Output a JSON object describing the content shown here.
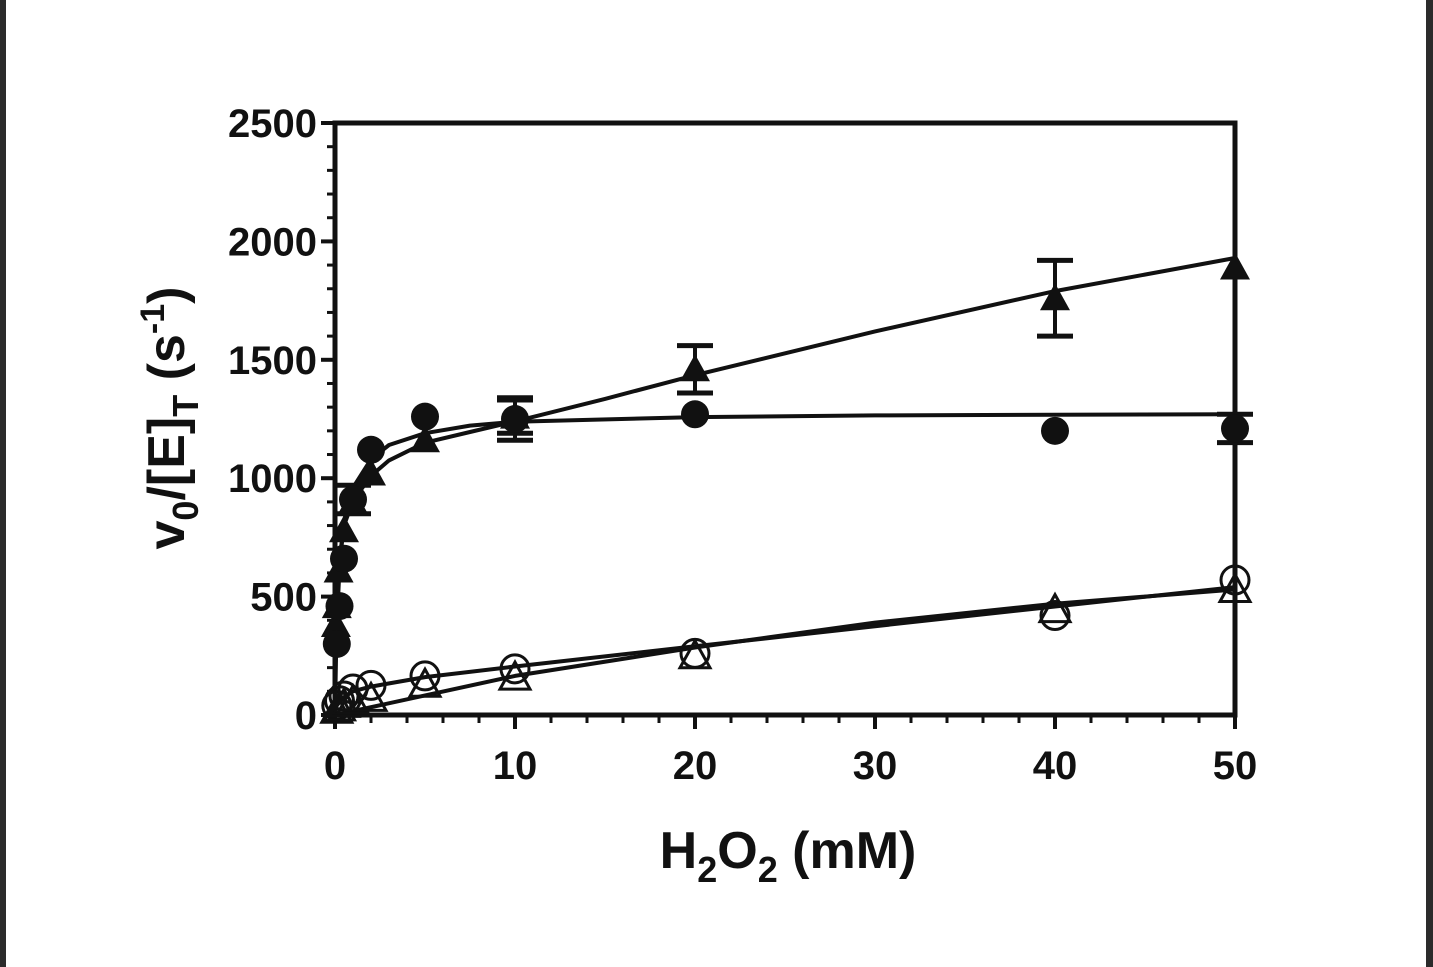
{
  "chart_data": {
    "type": "scatter",
    "title": "",
    "xlabel": {
      "main": "H",
      "sub1": "2",
      "mid": "O",
      "sub2": "2",
      "tail": " (mM)"
    },
    "ylabel": {
      "v": "v",
      "sub0": "0",
      "mid": "/[E]",
      "subT": "T",
      "tail": " (s",
      "sup": "-1",
      "close": ")"
    },
    "xlim": [
      0,
      50
    ],
    "ylim": [
      0,
      2500
    ],
    "x_ticks": [
      0,
      10,
      20,
      30,
      40,
      50
    ],
    "y_ticks": [
      0,
      500,
      1000,
      1500,
      2000,
      2500
    ],
    "grid": false,
    "legend": "none",
    "series": [
      {
        "marker": "filled-triangle",
        "points": [
          {
            "x": 0.05,
            "y": 380
          },
          {
            "x": 0.1,
            "y": 460
          },
          {
            "x": 0.2,
            "y": 610
          },
          {
            "x": 0.5,
            "y": 780
          },
          {
            "x": 1,
            "y": 900
          },
          {
            "x": 2,
            "y": 1020
          },
          {
            "x": 5,
            "y": 1160
          },
          {
            "x": 10,
            "y": 1260
          },
          {
            "x": 20,
            "y": 1460
          },
          {
            "x": 40,
            "y": 1760
          },
          {
            "x": 50,
            "y": 1890
          }
        ],
        "error": [
          null,
          null,
          null,
          null,
          null,
          null,
          null,
          70,
          100,
          160,
          null
        ],
        "fit": [
          [
            0,
            0
          ],
          [
            0.05,
            330
          ],
          [
            0.1,
            480
          ],
          [
            0.25,
            660
          ],
          [
            0.5,
            800
          ],
          [
            1,
            905
          ],
          [
            2,
            1010
          ],
          [
            3,
            1075
          ],
          [
            5,
            1150
          ],
          [
            7.5,
            1195
          ],
          [
            10,
            1240
          ],
          [
            15,
            1335
          ],
          [
            20,
            1435
          ],
          [
            30,
            1620
          ],
          [
            40,
            1790
          ],
          [
            50,
            1930
          ]
        ]
      },
      {
        "marker": "filled-circle",
        "points": [
          {
            "x": 0.1,
            "y": 300
          },
          {
            "x": 0.25,
            "y": 460
          },
          {
            "x": 0.5,
            "y": 660
          },
          {
            "x": 1,
            "y": 910
          },
          {
            "x": 2,
            "y": 1120
          },
          {
            "x": 5,
            "y": 1260
          },
          {
            "x": 10,
            "y": 1250
          },
          {
            "x": 20,
            "y": 1270
          },
          {
            "x": 40,
            "y": 1200
          },
          {
            "x": 50,
            "y": 1210
          }
        ],
        "error": [
          null,
          null,
          null,
          60,
          null,
          null,
          90,
          null,
          null,
          60
        ],
        "fit": [
          [
            0,
            0
          ],
          [
            0.05,
            220
          ],
          [
            0.1,
            380
          ],
          [
            0.25,
            620
          ],
          [
            0.5,
            820
          ],
          [
            1,
            960
          ],
          [
            2,
            1080
          ],
          [
            3,
            1140
          ],
          [
            5,
            1190
          ],
          [
            7.5,
            1222
          ],
          [
            10,
            1238
          ],
          [
            20,
            1258
          ],
          [
            30,
            1265
          ],
          [
            40,
            1268
          ],
          [
            50,
            1270
          ]
        ]
      },
      {
        "marker": "open-circle",
        "points": [
          {
            "x": 0.1,
            "y": 40
          },
          {
            "x": 0.25,
            "y": 60
          },
          {
            "x": 0.5,
            "y": 80
          },
          {
            "x": 1,
            "y": 110
          },
          {
            "x": 2,
            "y": 125
          },
          {
            "x": 5,
            "y": 165
          },
          {
            "x": 10,
            "y": 195
          },
          {
            "x": 20,
            "y": 260
          },
          {
            "x": 40,
            "y": 420
          },
          {
            "x": 50,
            "y": 570
          }
        ],
        "error": [
          null,
          null,
          null,
          null,
          null,
          null,
          null,
          null,
          null,
          null
        ],
        "fit": [
          [
            0,
            30
          ],
          [
            0.25,
            55
          ],
          [
            0.5,
            75
          ],
          [
            1,
            100
          ],
          [
            2,
            120
          ],
          [
            5,
            160
          ],
          [
            10,
            205
          ],
          [
            20,
            290
          ],
          [
            30,
            375
          ],
          [
            40,
            458
          ],
          [
            50,
            540
          ]
        ]
      },
      {
        "marker": "open-triangle",
        "points": [
          {
            "x": 0.1,
            "y": 20
          },
          {
            "x": 0.25,
            "y": 30
          },
          {
            "x": 0.5,
            "y": 45
          },
          {
            "x": 1,
            "y": 60
          },
          {
            "x": 2,
            "y": 70
          },
          {
            "x": 5,
            "y": 130
          },
          {
            "x": 10,
            "y": 160
          },
          {
            "x": 20,
            "y": 250
          },
          {
            "x": 40,
            "y": 445
          },
          {
            "x": 50,
            "y": 530
          }
        ],
        "error": [
          null,
          null,
          null,
          null,
          null,
          null,
          null,
          null,
          null,
          null
        ],
        "fit": [
          [
            0,
            0
          ],
          [
            10,
            165
          ],
          [
            20,
            285
          ],
          [
            30,
            390
          ],
          [
            40,
            470
          ],
          [
            50,
            530
          ]
        ]
      }
    ]
  }
}
